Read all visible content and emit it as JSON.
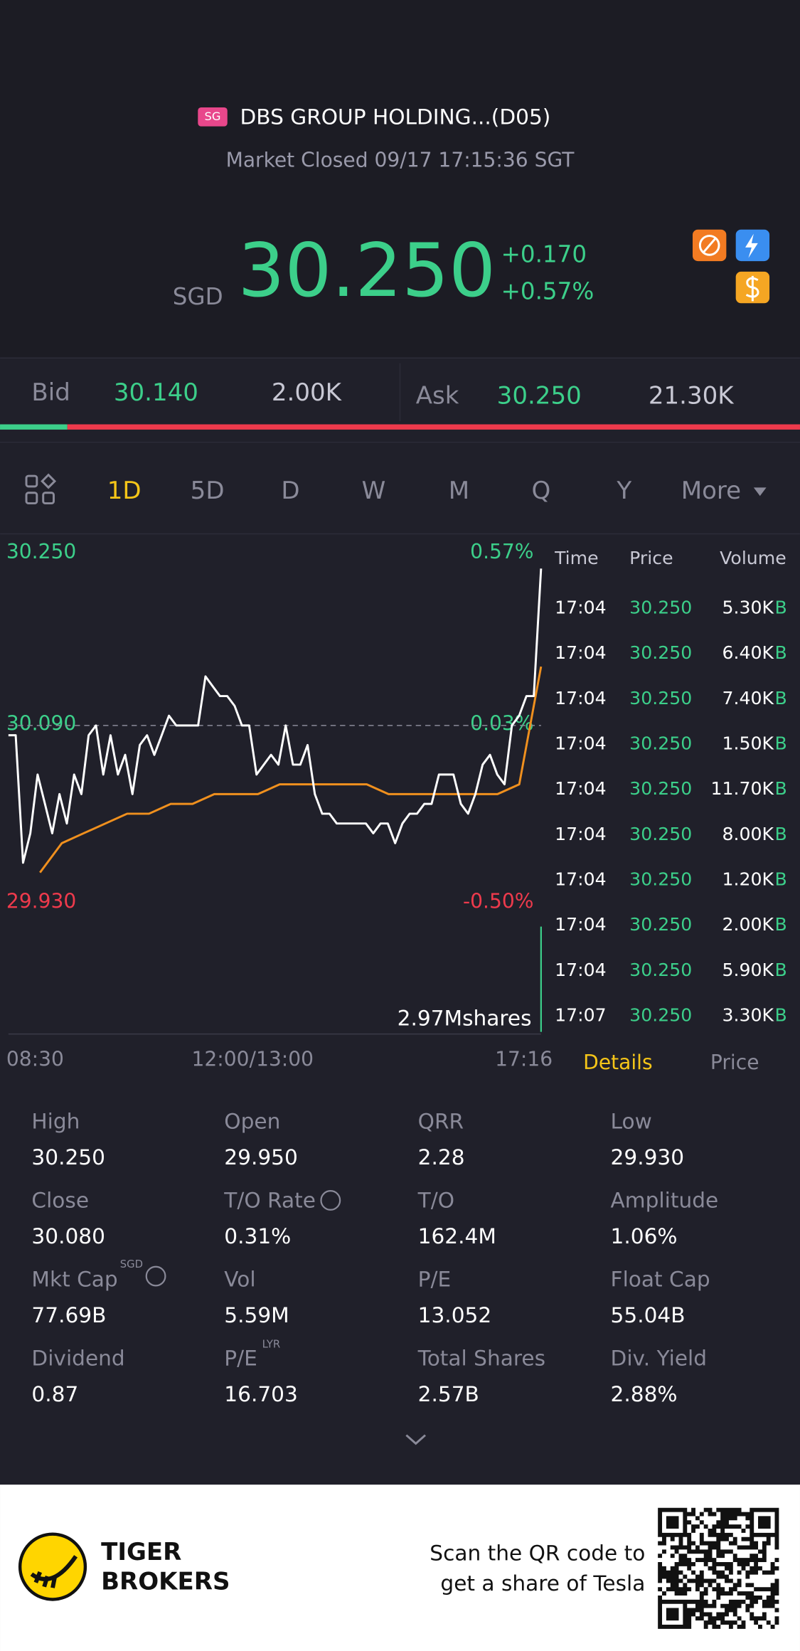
{
  "header": {
    "badge": "SG",
    "title": "DBS GROUP HOLDING...(D05)",
    "status": "Market Closed 09/17 17:15:36 SGT",
    "currency": "SGD",
    "price": "30.250",
    "change": "+0.170",
    "change_pct": "+0.57%"
  },
  "quote": {
    "bid_label": "Bid",
    "bid": "30.140",
    "bid_size": "2.00K",
    "ask_label": "Ask",
    "ask": "30.250",
    "ask_size": "21.30K"
  },
  "tabs": [
    "1D",
    "5D",
    "D",
    "W",
    "M",
    "Q",
    "Y",
    "More"
  ],
  "chart": {
    "ylim": [
      29.93,
      30.25
    ],
    "yticks": [
      {
        "value": 30.25,
        "label": "30.250"
      },
      {
        "value": 30.09,
        "label": "30.090"
      },
      {
        "value": 29.93,
        "label": "29.930"
      }
    ],
    "right_labels": [
      "0.57%",
      "0.03%",
      "-0.50%"
    ],
    "x_labels": [
      "08:30",
      "12:00/13:00",
      "17:16"
    ],
    "volume_label": "2.97Mshares",
    "price": [
      30.08,
      30.08,
      29.95,
      29.98,
      30.04,
      30.01,
      29.98,
      30.02,
      29.99,
      30.04,
      30.02,
      30.08,
      30.09,
      30.04,
      30.08,
      30.04,
      30.06,
      30.02,
      30.07,
      30.08,
      30.06,
      30.08,
      30.1,
      30.09,
      30.09,
      30.09,
      30.09,
      30.14,
      30.13,
      30.12,
      30.12,
      30.11,
      30.09,
      30.09,
      30.04,
      30.05,
      30.06,
      30.05,
      30.09,
      30.05,
      30.05,
      30.07,
      30.02,
      30.0,
      30.0,
      29.99,
      29.99,
      29.99,
      29.99,
      29.99,
      29.98,
      29.99,
      29.99,
      29.97,
      29.99,
      30.0,
      30.0,
      30.01,
      30.01,
      30.04,
      30.04,
      30.04,
      30.01,
      30.0,
      30.02,
      30.05,
      30.06,
      30.04,
      30.03,
      30.09,
      30.1,
      30.12,
      30.12,
      30.25
    ],
    "average": [
      29.94,
      29.97,
      29.98,
      29.99,
      30.0,
      30.0,
      30.01,
      30.01,
      30.02,
      30.02,
      30.02,
      30.03,
      30.03,
      30.03,
      30.03,
      30.03,
      30.02,
      30.02,
      30.02,
      30.02,
      30.02,
      30.02,
      30.03,
      30.15
    ]
  },
  "trades": {
    "headers": [
      "Time",
      "Price",
      "Volume"
    ],
    "side": "B",
    "rows": [
      [
        "17:04",
        "30.250",
        "5.30K"
      ],
      [
        "17:04",
        "30.250",
        "6.40K"
      ],
      [
        "17:04",
        "30.250",
        "7.40K"
      ],
      [
        "17:04",
        "30.250",
        "1.50K"
      ],
      [
        "17:04",
        "30.250",
        "11.70K"
      ],
      [
        "17:04",
        "30.250",
        "8.00K"
      ],
      [
        "17:04",
        "30.250",
        "1.20K"
      ],
      [
        "17:04",
        "30.250",
        "2.00K"
      ],
      [
        "17:04",
        "30.250",
        "5.90K"
      ],
      [
        "17:07",
        "30.250",
        "3.30K"
      ]
    ]
  },
  "side_tabs": [
    "Details",
    "Price"
  ],
  "details": [
    [
      [
        "High",
        "30.250"
      ],
      [
        "Open",
        "29.950"
      ],
      [
        "QRR",
        "2.28"
      ],
      [
        "Low",
        "29.930"
      ]
    ],
    [
      [
        "Close",
        "30.080"
      ],
      [
        "T/O Rate",
        "0.31%"
      ],
      [
        "T/O",
        "162.4M"
      ],
      [
        "Amplitude",
        "1.06%"
      ]
    ],
    [
      [
        "Mkt Cap",
        "77.69B"
      ],
      [
        "Vol",
        "5.59M"
      ],
      [
        "P/E",
        "13.052"
      ],
      [
        "Float Cap",
        "55.04B"
      ]
    ],
    [
      [
        "Dividend",
        "0.87"
      ],
      [
        "P/E",
        "16.703"
      ],
      [
        "Total Shares",
        "2.57B"
      ],
      [
        "Div. Yield",
        "2.88%"
      ]
    ]
  ],
  "superscripts": {
    "mkt_cap": "SGD",
    "pe": "LYR"
  },
  "footer": {
    "brand_line1": "TIGER",
    "brand_line2": "BROKERS",
    "promo_line1": "Scan the QR code to",
    "promo_line2": "get a share of Tesla"
  }
}
